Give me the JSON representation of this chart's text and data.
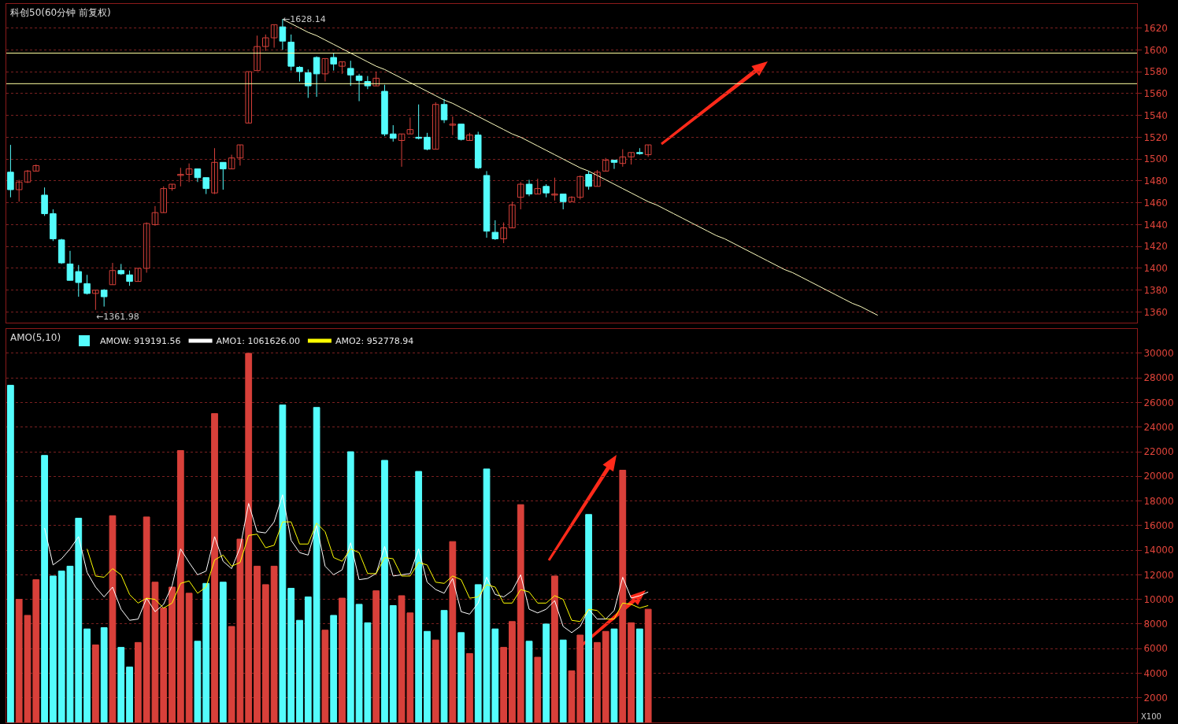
{
  "chart_data": [
    {
      "type": "candlestick",
      "title": "科创50(60分钟 前复权)",
      "categories": [
        null,
        null,
        null,
        null,
        null,
        null,
        null,
        null,
        null,
        null,
        null,
        null,
        null,
        null,
        null,
        null,
        null,
        null,
        null,
        null,
        null,
        null,
        null,
        null,
        null,
        null,
        null,
        null,
        null,
        null,
        null,
        null,
        null,
        null,
        null,
        null,
        null,
        null,
        null,
        null,
        null,
        null,
        null,
        null,
        null,
        null,
        null,
        null,
        null,
        null,
        null,
        null,
        null,
        null,
        null,
        null,
        null,
        null,
        null,
        null,
        null,
        null,
        null,
        null,
        null,
        null,
        null,
        null,
        null,
        null,
        null,
        null,
        null,
        null,
        null,
        null,
        null,
        null,
        null,
        null,
        null,
        null,
        null,
        null,
        null,
        null,
        null,
        null,
        null,
        null,
        null,
        null,
        null,
        null,
        null,
        null,
        null,
        null,
        null,
        null,
        null,
        null,
        null,
        null,
        null,
        null,
        null,
        null,
        null,
        null,
        null,
        null,
        null,
        null,
        null,
        null,
        null,
        null,
        null,
        null,
        null,
        null,
        null,
        null,
        null,
        null,
        null,
        null,
        null,
        null,
        null,
        null,
        null
      ],
      "ohlc": [
        [
          1488,
          1513,
          1465,
          1472
        ],
        [
          1472,
          1481,
          1461,
          1479
        ],
        [
          1479,
          1490,
          1478,
          1489
        ],
        [
          1489,
          1495,
          1489,
          1494
        ],
        [
          1467,
          1474,
          1448,
          1450
        ],
        [
          1450,
          1454,
          1425,
          1427
        ],
        [
          1426,
          1427,
          1404,
          1405
        ],
        [
          1404,
          1416,
          1389,
          1389
        ],
        [
          1397,
          1403,
          1374,
          1387
        ],
        [
          1386,
          1394,
          1376,
          1377
        ],
        [
          1377,
          1380,
          1361.98,
          1380
        ],
        [
          1380,
          1381,
          1365,
          1374
        ],
        [
          1385,
          1405,
          1385,
          1398
        ],
        [
          1398,
          1404,
          1394,
          1395
        ],
        [
          1394,
          1398,
          1384,
          1388
        ],
        [
          1388,
          1400,
          1388,
          1400
        ],
        [
          1400,
          1442,
          1396,
          1441
        ],
        [
          1440,
          1457,
          1439,
          1451
        ],
        [
          1451,
          1475,
          1451,
          1473
        ],
        [
          1473,
          1477,
          1471,
          1477
        ],
        [
          1485,
          1492,
          1475,
          1486
        ],
        [
          1486,
          1496,
          1479,
          1491
        ],
        [
          1491,
          1491,
          1479,
          1483
        ],
        [
          1483,
          1483,
          1468,
          1473
        ],
        [
          1469,
          1510,
          1468,
          1497
        ],
        [
          1497,
          1497,
          1472,
          1491
        ],
        [
          1491,
          1504,
          1491,
          1501
        ],
        [
          1501,
          1513,
          1494,
          1513
        ],
        [
          1533,
          1580,
          1533,
          1580
        ],
        [
          1581,
          1613,
          1581,
          1603
        ],
        [
          1603,
          1614,
          1599,
          1611
        ],
        [
          1611,
          1623,
          1602,
          1623
        ],
        [
          1621,
          1628.14,
          1600,
          1608
        ],
        [
          1607,
          1614,
          1581,
          1585
        ],
        [
          1584,
          1585,
          1571,
          1580
        ],
        [
          1579,
          1582,
          1556,
          1567
        ],
        [
          1593,
          1594,
          1557,
          1578
        ],
        [
          1578,
          1592,
          1571,
          1592
        ],
        [
          1593,
          1597,
          1581,
          1587
        ],
        [
          1585,
          1589,
          1578,
          1589
        ],
        [
          1583,
          1590,
          1567,
          1577
        ],
        [
          1576,
          1578,
          1553,
          1572
        ],
        [
          1571,
          1576,
          1564,
          1567
        ],
        [
          1567,
          1580,
          1567,
          1574
        ],
        [
          1562,
          1568,
          1521,
          1523
        ],
        [
          1523,
          1531,
          1516,
          1519
        ],
        [
          1517,
          1523,
          1493,
          1523
        ],
        [
          1523,
          1538,
          1523,
          1527
        ],
        [
          1520,
          1550,
          1518,
          1519
        ],
        [
          1520,
          1524,
          1508,
          1509
        ],
        [
          1509,
          1552,
          1509,
          1550
        ],
        [
          1550,
          1555,
          1533,
          1536
        ],
        [
          1531,
          1539,
          1522,
          1532
        ],
        [
          1532,
          1532,
          1517,
          1518
        ],
        [
          1517,
          1524,
          1517,
          1522
        ],
        [
          1522,
          1525,
          1491,
          1492
        ],
        [
          1485,
          1489,
          1428,
          1434
        ],
        [
          1433,
          1444,
          1426,
          1427
        ],
        [
          1427,
          1442,
          1423,
          1437
        ],
        [
          1437,
          1461,
          1437,
          1458
        ],
        [
          1465,
          1479,
          1454,
          1477
        ],
        [
          1477,
          1481,
          1466,
          1468
        ],
        [
          1468,
          1482,
          1468,
          1473
        ],
        [
          1475,
          1477,
          1465,
          1469
        ],
        [
          1467,
          1483,
          1462,
          1468
        ],
        [
          1468,
          1468,
          1454,
          1461
        ],
        [
          1461,
          1466,
          1461,
          1465
        ],
        [
          1465,
          1485,
          1463,
          1484
        ],
        [
          1486,
          1489,
          1472,
          1475
        ],
        [
          1475,
          1490,
          1475,
          1488
        ],
        [
          1489,
          1501,
          1489,
          1499
        ],
        [
          1499,
          1499,
          1491,
          1497
        ],
        [
          1496,
          1509,
          1493,
          1502
        ],
        [
          1502,
          1506,
          1495,
          1506
        ],
        [
          1506,
          1510,
          1504,
          1505
        ],
        [
          1504,
          1513,
          1502,
          1513
        ],
        null,
        null,
        null,
        null,
        null,
        null,
        null,
        null,
        null,
        null,
        null,
        null,
        null,
        null,
        null,
        null,
        null,
        null,
        null,
        null,
        null,
        null,
        null,
        null,
        null,
        null,
        null,
        null,
        null,
        null,
        null,
        null,
        null,
        null,
        null,
        null,
        null,
        null,
        null,
        null,
        null,
        null,
        null,
        null,
        null,
        null,
        null,
        null,
        null,
        null,
        null,
        null,
        null,
        null,
        null,
        null,
        null
      ],
      "series": [
        {
          "type": "line",
          "color": "#ffffc0",
          "values": [
            null,
            null,
            null,
            null,
            null,
            null,
            null,
            null,
            null,
            null,
            null,
            null,
            null,
            null,
            null,
            null,
            null,
            null,
            null,
            null,
            null,
            null,
            null,
            null,
            null,
            null,
            null,
            null,
            null,
            null,
            null,
            null,
            1628,
            1624,
            1620,
            1616,
            1613,
            1609,
            1605,
            1601,
            1597,
            1593,
            1589,
            1585,
            1582,
            1578,
            1574,
            1570,
            1566,
            1562,
            1558,
            1554,
            1551,
            1547,
            1543,
            1539,
            1535,
            1531,
            1527,
            1523,
            1520,
            1516,
            1512,
            1508,
            1504,
            1500,
            1496,
            1492,
            1489,
            1485,
            1481,
            1477,
            1473,
            1469,
            1465,
            1461,
            1458,
            1454,
            1450,
            1446,
            1442,
            1438,
            1434,
            1430,
            1427,
            1423,
            1419,
            1415,
            1411,
            1407,
            1403,
            1399,
            1396,
            1392,
            1388,
            1384,
            1380,
            1376,
            1372,
            1368,
            1365,
            1361,
            1357,
            null,
            null,
            null,
            null,
            null,
            null,
            null,
            null,
            null,
            null,
            null,
            null,
            null,
            null,
            null,
            null,
            null,
            null,
            null,
            null,
            null,
            null,
            null,
            null,
            null,
            null,
            null,
            null,
            null,
            null
          ]
        }
      ],
      "ref_lines": [
        {
          "axis": "y",
          "value": 1597,
          "color": "#ffffa0"
        },
        {
          "axis": "y",
          "value": 1569,
          "color": "#ffffa0"
        }
      ],
      "annotations": [
        "←1628.14",
        "←1361.98"
      ],
      "ylim": [
        1350,
        1642
      ],
      "yticks": [
        1360,
        1380,
        1400,
        1420,
        1440,
        1460,
        1480,
        1500,
        1520,
        1540,
        1560,
        1580,
        1600,
        1620
      ],
      "grid": "y",
      "tick_labels": "y"
    },
    {
      "type": "bar",
      "title": "AMO(5,10)",
      "categories": [
        null,
        null,
        null,
        null,
        null,
        null,
        null,
        null,
        null,
        null,
        null,
        null,
        null,
        null,
        null,
        null,
        null,
        null,
        null,
        null,
        null,
        null,
        null,
        null,
        null,
        null,
        null,
        null,
        null,
        null,
        null,
        null,
        null,
        null,
        null,
        null,
        null,
        null,
        null,
        null,
        null,
        null,
        null,
        null,
        null,
        null,
        null,
        null,
        null,
        null,
        null,
        null,
        null,
        null,
        null,
        null,
        null,
        null,
        null,
        null,
        null,
        null,
        null,
        null,
        null,
        null,
        null,
        null,
        null,
        null,
        null,
        null,
        null,
        null,
        null,
        null,
        null,
        null,
        null,
        null,
        null,
        null,
        null,
        null,
        null,
        null,
        null,
        null,
        null,
        null,
        null,
        null,
        null,
        null,
        null,
        null,
        null,
        null,
        null,
        null,
        null,
        null,
        null,
        null,
        null,
        null,
        null,
        null,
        null,
        null,
        null,
        null,
        null,
        null,
        null,
        null,
        null,
        null,
        null,
        null,
        null,
        null,
        null,
        null,
        null,
        null,
        null,
        null,
        null,
        null,
        null,
        null,
        null
      ],
      "series": [
        {
          "type": "bar",
          "name": "AMOW: 919191.56",
          "values": [
            27400,
            10000,
            8700,
            11600,
            21700,
            11900,
            12300,
            12700,
            16600,
            7600,
            6300,
            7700,
            16800,
            6100,
            4500,
            6500,
            16700,
            11400,
            9300,
            11000,
            22100,
            10500,
            6600,
            11300,
            25100,
            11400,
            7800,
            14900,
            30000,
            12700,
            11200,
            12700,
            25800,
            10900,
            8300,
            10200,
            25600,
            7500,
            8700,
            10100,
            22000,
            9600,
            8100,
            10700,
            21300,
            9500,
            10300,
            8900,
            20400,
            7400,
            6700,
            9100,
            14700,
            7300,
            5600,
            11200,
            20600,
            7600,
            6100,
            8200,
            17700,
            6600,
            5300,
            8000,
            11900,
            6700,
            4200,
            7100,
            16900,
            6500,
            7400,
            7600,
            20500,
            8100,
            7600,
            9200,
            null,
            null,
            null,
            null,
            null,
            null,
            null,
            null,
            null,
            null,
            null,
            null,
            null,
            null,
            null,
            null,
            null,
            null,
            null,
            null,
            null,
            null,
            null,
            null,
            null,
            null,
            null,
            null,
            null,
            null,
            null,
            null,
            null,
            null,
            null,
            null,
            null,
            null,
            null,
            null,
            null,
            null,
            null,
            null,
            null,
            null,
            null,
            null,
            null,
            null,
            null,
            null,
            null,
            null,
            null,
            null,
            null
          ],
          "colors": [
            "#54fcfc",
            "#d8403a",
            "#d8403a",
            "#d8403a",
            "#54fcfc",
            "#54fcfc",
            "#54fcfc",
            "#54fcfc",
            "#54fcfc",
            "#54fcfc",
            "#d8403a",
            "#54fcfc",
            "#d8403a",
            "#54fcfc",
            "#54fcfc",
            "#d8403a",
            "#d8403a",
            "#d8403a",
            "#d8403a",
            "#d8403a",
            "#d8403a",
            "#d8403a",
            "#54fcfc",
            "#54fcfc",
            "#d8403a",
            "#54fcfc",
            "#d8403a",
            "#d8403a",
            "#d8403a",
            "#d8403a",
            "#d8403a",
            "#d8403a",
            "#54fcfc",
            "#54fcfc",
            "#54fcfc",
            "#54fcfc",
            "#54fcfc",
            "#d8403a",
            "#54fcfc",
            "#d8403a",
            "#54fcfc",
            "#54fcfc",
            "#54fcfc",
            "#d8403a",
            "#54fcfc",
            "#54fcfc",
            "#d8403a",
            "#d8403a",
            "#54fcfc",
            "#54fcfc",
            "#d8403a",
            "#54fcfc",
            "#d8403a",
            "#54fcfc",
            "#d8403a",
            "#54fcfc",
            "#54fcfc",
            "#54fcfc",
            "#d8403a",
            "#d8403a",
            "#d8403a",
            "#54fcfc",
            "#d8403a",
            "#54fcfc",
            "#d8403a",
            "#54fcfc",
            "#d8403a",
            "#d8403a",
            "#54fcfc",
            "#d8403a",
            "#d8403a",
            "#54fcfc",
            "#d8403a",
            "#d8403a",
            "#54fcfc",
            "#d8403a",
            null,
            null,
            null,
            null,
            null,
            null,
            null,
            null,
            null,
            null,
            null,
            null,
            null,
            null,
            null,
            null,
            null,
            null,
            null,
            null,
            null,
            null,
            null,
            null,
            null,
            null,
            null,
            null,
            null,
            null,
            null,
            null,
            null,
            null,
            null,
            null,
            null,
            null,
            null,
            null,
            null,
            null,
            null,
            null,
            null,
            null,
            null,
            null,
            null,
            null,
            null,
            null,
            null,
            null,
            null,
            null,
            null
          ]
        },
        {
          "type": "line",
          "name": "AMO1: 1061626.00",
          "color": "#ffffff",
          "values": [
            null,
            null,
            null,
            null,
            15800,
            12800,
            13300,
            14100,
            15100,
            12200,
            11000,
            10200,
            11000,
            9200,
            8300,
            8400,
            10100,
            9000,
            9600,
            11100,
            14100,
            13000,
            12000,
            12300,
            15100,
            13100,
            12500,
            14200,
            17800,
            15500,
            15400,
            16300,
            18500,
            14800,
            13800,
            13600,
            16000,
            12700,
            12000,
            12400,
            14600,
            11600,
            11700,
            12100,
            14300,
            11900,
            12000,
            12100,
            14100,
            11400,
            10800,
            10500,
            11700,
            9000,
            8800,
            9700,
            11800,
            10400,
            10200,
            10700,
            12000,
            9200,
            8900,
            9200,
            9900,
            7800,
            7300,
            7800,
            9200,
            8400,
            8400,
            9100,
            11800,
            10100,
            10300,
            10600,
            null,
            null,
            null,
            null,
            null,
            null,
            null,
            null,
            null,
            null,
            null,
            null,
            null,
            null,
            null,
            null,
            null,
            null,
            null,
            null,
            null,
            null,
            null,
            null,
            null,
            null,
            null,
            null,
            null,
            null,
            null,
            null,
            null,
            null,
            null,
            null,
            null,
            null,
            null,
            null,
            null,
            null,
            null,
            null,
            null,
            null,
            null,
            null,
            null,
            null,
            null,
            null,
            null,
            null,
            null,
            null,
            null
          ]
        },
        {
          "type": "line",
          "name": "AMO2: 952778.94",
          "color": "#ffff00",
          "values": [
            null,
            null,
            null,
            null,
            null,
            null,
            null,
            null,
            null,
            14100,
            11900,
            11800,
            12500,
            12000,
            10400,
            9700,
            10100,
            10000,
            9300,
            9700,
            11300,
            11500,
            10500,
            11000,
            13200,
            13600,
            12700,
            13000,
            15200,
            15300,
            14200,
            14400,
            16300,
            16300,
            14500,
            14500,
            16200,
            15500,
            13400,
            13100,
            14100,
            13800,
            12100,
            12100,
            13400,
            13300,
            11900,
            11900,
            13000,
            12800,
            11400,
            11300,
            11900,
            11600,
            10100,
            10200,
            11200,
            11000,
            9700,
            9700,
            10800,
            10600,
            9700,
            9700,
            10300,
            10000,
            8300,
            8200,
            9200,
            9100,
            8400,
            8400,
            9700,
            9600,
            9300,
            9500,
            null,
            null,
            null,
            null,
            null,
            null,
            null,
            null,
            null,
            null,
            null,
            null,
            null,
            null,
            null,
            null,
            null,
            null,
            null,
            null,
            null,
            null,
            null,
            null,
            null,
            null,
            null,
            null,
            null,
            null,
            null,
            null,
            null,
            null,
            null,
            null,
            null,
            null,
            null,
            null,
            null,
            null,
            null,
            null,
            null,
            null,
            null,
            null,
            null,
            null,
            null,
            null,
            null,
            null,
            null,
            null,
            null
          ]
        }
      ],
      "annotations": [
        "X100"
      ],
      "ylim": [
        0,
        32000
      ],
      "yticks": [
        2000,
        4000,
        6000,
        8000,
        10000,
        12000,
        14000,
        16000,
        18000,
        20000,
        22000,
        24000,
        26000,
        28000,
        30000
      ],
      "grid": "y",
      "tick_labels": "y",
      "legend": "top left"
    }
  ]
}
